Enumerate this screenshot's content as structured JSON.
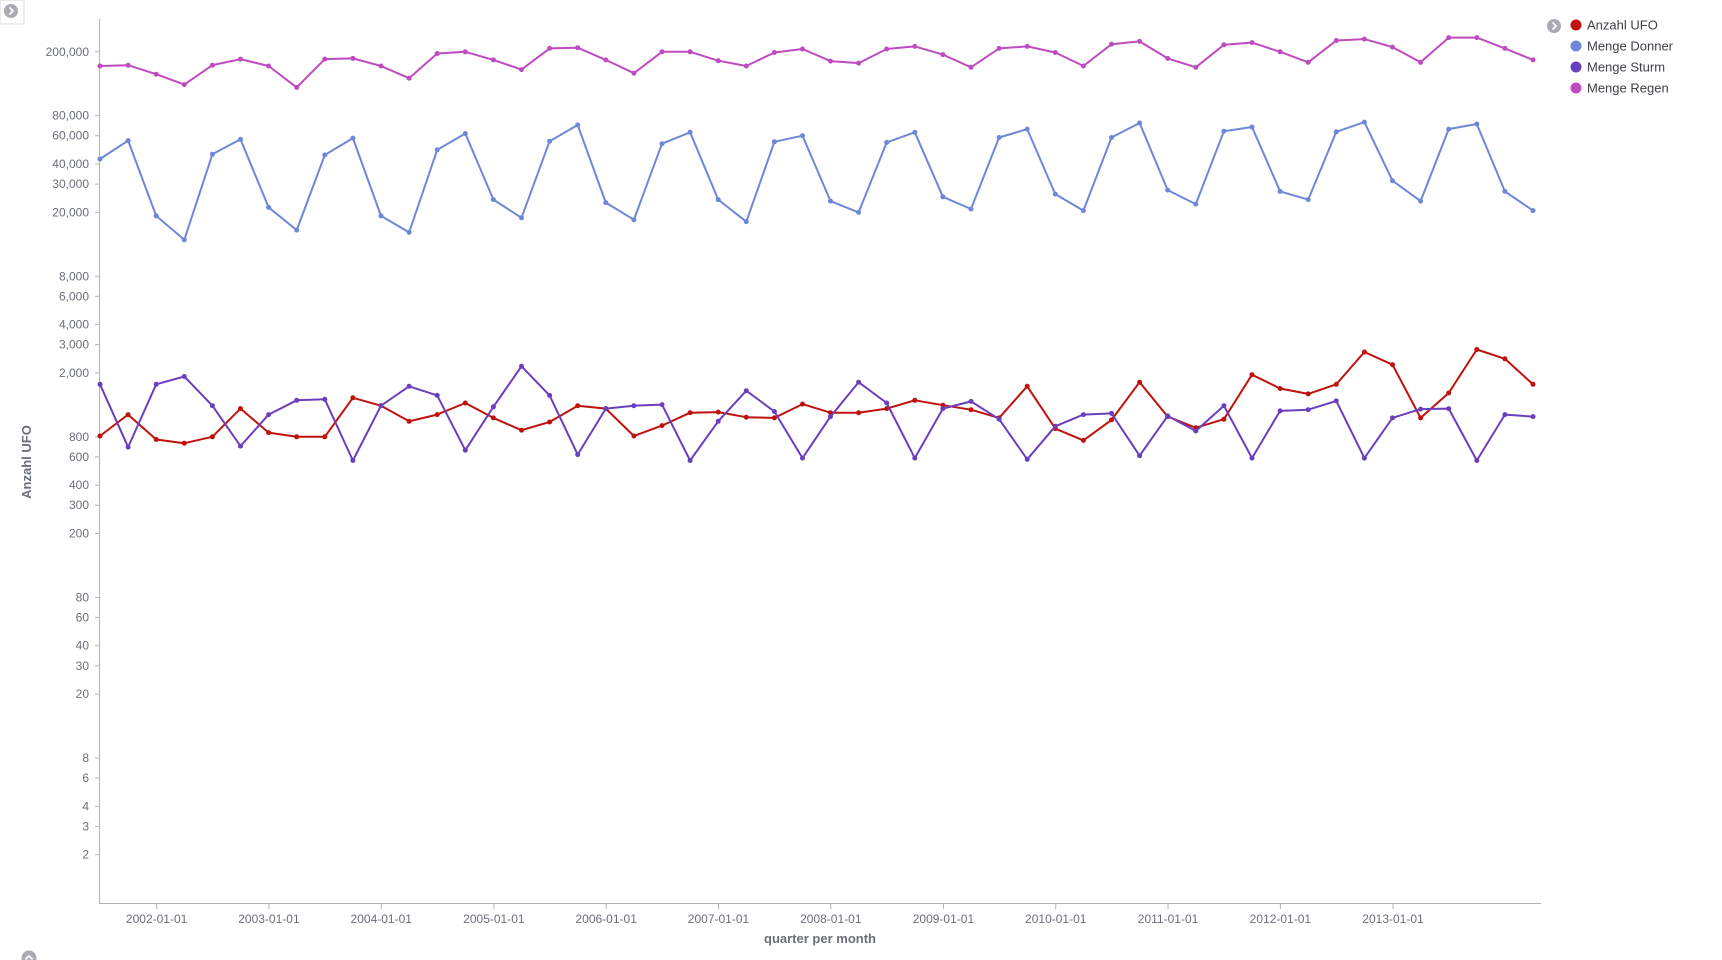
{
  "chart_data": {
    "type": "line",
    "xlabel": "quarter per month",
    "ylabel": "Anzahl UFO",
    "yscale": "log",
    "ylim": [
      1,
      320000
    ],
    "grid": false,
    "legend_placement": "top-right",
    "x": [
      "2001-07-01",
      "2001-10-01",
      "2002-01-01",
      "2002-04-01",
      "2002-07-01",
      "2002-10-01",
      "2003-01-01",
      "2003-04-01",
      "2003-07-01",
      "2003-10-01",
      "2004-01-01",
      "2004-04-01",
      "2004-07-01",
      "2004-10-01",
      "2005-01-01",
      "2005-04-01",
      "2005-07-01",
      "2005-10-01",
      "2006-01-01",
      "2006-04-01",
      "2006-07-01",
      "2006-10-01",
      "2007-01-01",
      "2007-04-01",
      "2007-07-01",
      "2007-10-01",
      "2008-01-01",
      "2008-04-01",
      "2008-07-01",
      "2008-10-01",
      "2009-01-01",
      "2009-04-01",
      "2009-07-01",
      "2009-10-01",
      "2010-01-01",
      "2010-04-01",
      "2010-07-01",
      "2010-10-01",
      "2011-01-01",
      "2011-04-01",
      "2011-07-01",
      "2011-10-01",
      "2012-01-01",
      "2012-04-01",
      "2012-07-01",
      "2012-10-01",
      "2013-01-01",
      "2013-04-01",
      "2013-07-01",
      "2013-10-01",
      "2014-01-01",
      "2014-04-01"
    ],
    "xticks": [
      "2002-01-01",
      "2003-01-01",
      "2004-01-01",
      "2005-01-01",
      "2006-01-01",
      "2007-01-01",
      "2008-01-01",
      "2009-01-01",
      "2010-01-01",
      "2011-01-01",
      "2012-01-01",
      "2013-01-01"
    ],
    "yticks": [
      {
        "v": 200000,
        "label": "200,000"
      },
      {
        "v": 80000,
        "label": "80,000"
      },
      {
        "v": 60000,
        "label": "60,000"
      },
      {
        "v": 40000,
        "label": "40,000"
      },
      {
        "v": 30000,
        "label": "30,000"
      },
      {
        "v": 20000,
        "label": "20,000"
      },
      {
        "v": 8000,
        "label": "8,000"
      },
      {
        "v": 6000,
        "label": "6,000"
      },
      {
        "v": 4000,
        "label": "4,000"
      },
      {
        "v": 3000,
        "label": "3,000"
      },
      {
        "v": 2000,
        "label": "2,000"
      },
      {
        "v": 800,
        "label": "800"
      },
      {
        "v": 600,
        "label": "600"
      },
      {
        "v": 400,
        "label": "400"
      },
      {
        "v": 300,
        "label": "300"
      },
      {
        "v": 200,
        "label": "200"
      },
      {
        "v": 80,
        "label": "80"
      },
      {
        "v": 60,
        "label": "60"
      },
      {
        "v": 40,
        "label": "40"
      },
      {
        "v": 30,
        "label": "30"
      },
      {
        "v": 20,
        "label": "20"
      },
      {
        "v": 8,
        "label": "8"
      },
      {
        "v": 6,
        "label": "6"
      },
      {
        "v": 4,
        "label": "4"
      },
      {
        "v": 3,
        "label": "3"
      },
      {
        "v": 2,
        "label": "2"
      }
    ],
    "series": [
      {
        "name": "Anzahl UFO",
        "color": "#c0120d",
        "values": [
          810,
          1100,
          770,
          730,
          800,
          1200,
          850,
          800,
          800,
          1400,
          1250,
          1000,
          1100,
          1300,
          1050,
          880,
          990,
          1250,
          1200,
          810,
          940,
          1130,
          1140,
          1060,
          1050,
          1280,
          1130,
          1130,
          1200,
          1350,
          1260,
          1180,
          1050,
          1650,
          900,
          760,
          1020,
          1750,
          1070,
          910,
          1030,
          1950,
          1600,
          1480,
          1700,
          2700,
          2250,
          1050,
          1500,
          2800,
          2450,
          1700
        ]
      },
      {
        "name": "Menge Donner",
        "color": "#6f87d8",
        "values": [
          43000,
          56000,
          19000,
          13500,
          46000,
          57000,
          21500,
          15500,
          45500,
          58000,
          19000,
          15000,
          49000,
          62000,
          24000,
          18500,
          55500,
          70000,
          23000,
          18000,
          53500,
          63000,
          24000,
          17500,
          55000,
          60000,
          23500,
          20000,
          54500,
          63000,
          25000,
          21000,
          58500,
          66000,
          26000,
          20500,
          58500,
          72000,
          27500,
          22500,
          64000,
          68000,
          27000,
          24000,
          63500,
          73000,
          31500,
          23500,
          66000,
          71000,
          27000,
          20500
        ]
      },
      {
        "name": "Menge Regen",
        "color": "#be4bbf",
        "values": [
          163000,
          165000,
          145000,
          125000,
          165000,
          180000,
          163000,
          120000,
          180000,
          182000,
          163000,
          137000,
          195000,
          200000,
          178000,
          155000,
          210000,
          212000,
          178000,
          147000,
          200000,
          200000,
          176000,
          163000,
          198000,
          208000,
          175000,
          170000,
          208000,
          216000,
          192000,
          160000,
          210000,
          216000,
          198000,
          163000,
          223000,
          232000,
          182000,
          160000,
          221000,
          228000,
          200000,
          172000,
          235000,
          240000,
          214000,
          172000,
          245000,
          245000,
          210000,
          178000
        ]
      },
      {
        "name": "Menge Sturm",
        "color": "#6a3fbd",
        "values": [
          1700,
          690,
          1700,
          1900,
          1250,
          700,
          1100,
          1350,
          1370,
          570,
          1250,
          1650,
          1450,
          660,
          1230,
          2200,
          1450,
          620,
          1200,
          1250,
          1270,
          570,
          1000,
          1550,
          1150,
          590,
          1070,
          1750,
          1300,
          590,
          1200,
          1330,
          1030,
          580,
          930,
          1100,
          1120,
          610,
          1080,
          870,
          1250,
          590,
          1160,
          1180,
          1340,
          590,
          1050,
          1190,
          1200,
          570,
          1100,
          1070
        ]
      }
    ]
  },
  "legend_order": [
    "Anzahl UFO",
    "Menge Donner",
    "Menge Sturm",
    "Menge Regen"
  ],
  "controls": {
    "toggle_legend_icon": "chevron-right-icon",
    "collapse_panel_icon": "chevron-up-icon",
    "expand_sidebar_icon": "chevron-right-icon"
  }
}
